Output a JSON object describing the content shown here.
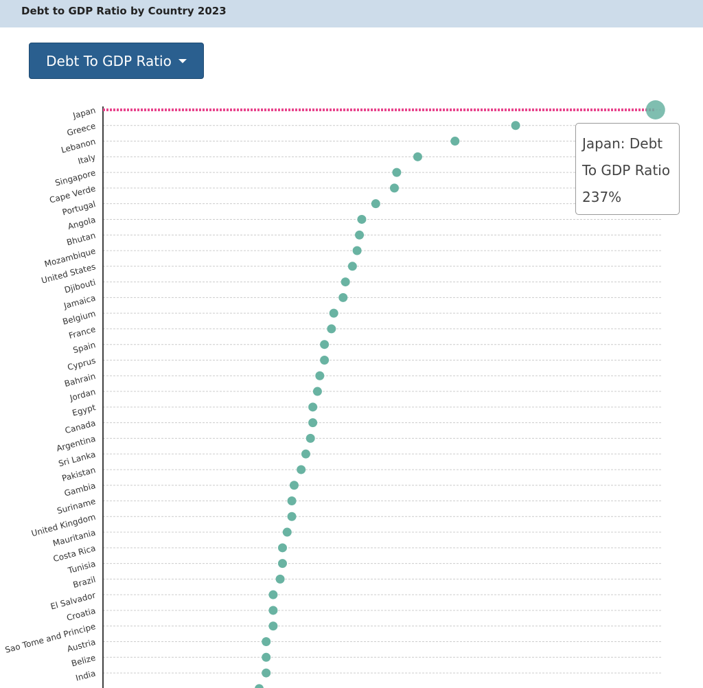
{
  "header": {
    "title": "Debt to GDP Ratio by Country 2023"
  },
  "dropdown": {
    "label": "Debt To GDP Ratio"
  },
  "chart_data": {
    "type": "lollipop",
    "categories": [
      "Japan",
      "Greece",
      "Lebanon",
      "Italy",
      "Singapore",
      "Cape Verde",
      "Portugal",
      "Angola",
      "Bhutan",
      "Mozambique",
      "United States",
      "Djibouti",
      "Jamaica",
      "Belgium",
      "France",
      "Spain",
      "Cyprus",
      "Bahrain",
      "Jordan",
      "Egypt",
      "Canada",
      "Argentina",
      "Sri Lanka",
      "Pakistan",
      "Gambia",
      "Suriname",
      "United Kingdom",
      "Mauritania",
      "Costa Rica",
      "Tunisia",
      "Brazil",
      "El Salvador",
      "Croatia",
      "Sao Tome and Principe",
      "Austria",
      "Belize",
      "India",
      null
    ],
    "values": [
      237,
      177,
      151,
      135,
      126,
      125,
      117,
      111,
      110,
      109,
      107,
      104,
      103,
      99,
      98,
      95,
      95,
      93,
      92,
      90,
      90,
      89,
      87,
      85,
      82,
      81,
      81,
      79,
      77,
      77,
      76,
      73,
      73,
      73,
      70,
      70,
      70,
      67
    ],
    "color": "#69b3a2",
    "highlight_color": "#e8448c",
    "xlim": [
      0,
      240
    ],
    "tooltip": {
      "title": "Japan: Debt To GDP Ratio",
      "value": "237%"
    }
  }
}
